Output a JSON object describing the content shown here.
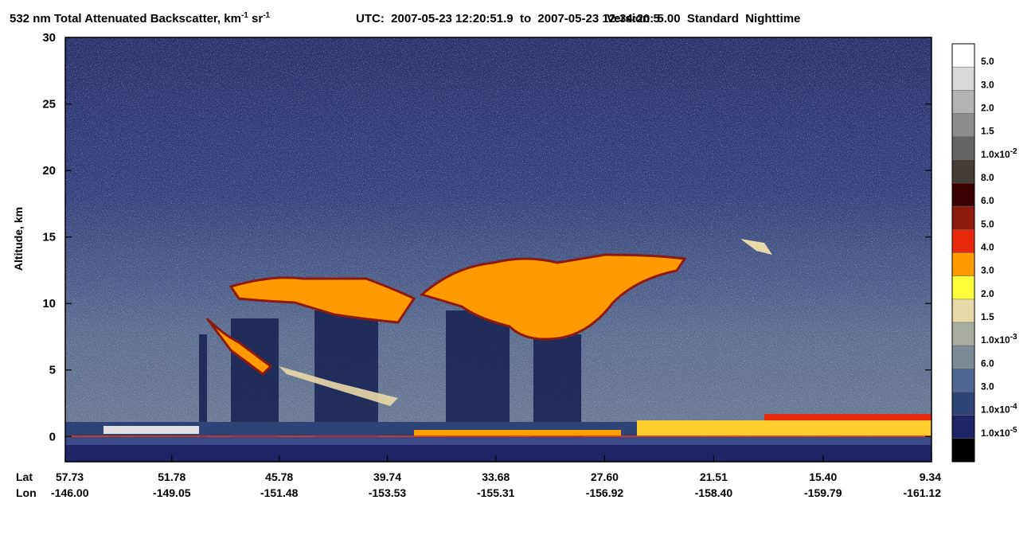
{
  "title": {
    "main": "532 nm Total Attenuated Backscatter, km",
    "sup1": "-1",
    "mid": " sr",
    "sup2": "-1",
    "utc": "UTC:  2007-05-23 12:20:51.9  to  2007-05-23 12:34:20.5",
    "version": "Version: 5.00  Standard  Nighttime"
  },
  "chart_data": {
    "type": "heatmap",
    "ylabel": "Altitude, km",
    "ylim": [
      -1.9,
      30
    ],
    "yticks": [
      0,
      5,
      10,
      15,
      20,
      25,
      30
    ],
    "x_row_labels": [
      "Lat",
      "Lon"
    ],
    "xlim": [
      57.73,
      9.34
    ],
    "xticks": [
      {
        "value": 57.73,
        "label": "57.73",
        "lon": "-146.00"
      },
      {
        "value": 51.78,
        "label": "51.78",
        "lon": "-149.05"
      },
      {
        "value": 45.78,
        "label": "45.78",
        "lon": "-151.48"
      },
      {
        "value": 39.74,
        "label": "39.74",
        "lon": "-153.53"
      },
      {
        "value": 33.68,
        "label": "33.68",
        "lon": "-155.31"
      },
      {
        "value": 27.6,
        "label": "27.60",
        "lon": "-156.92"
      },
      {
        "value": 21.51,
        "label": "21.51",
        "lon": "-158.40"
      },
      {
        "value": 15.4,
        "label": "15.40",
        "lon": "-159.79"
      },
      {
        "value": 9.34,
        "label": "9.34",
        "lon": "-161.12"
      }
    ]
  },
  "colorbar": {
    "colors": [
      "#ffffff",
      "#d9d9d9",
      "#b3b3b3",
      "#8c8c8c",
      "#646464",
      "#463c37",
      "#3a0000",
      "#8c1a10",
      "#e8280a",
      "#ff9a00",
      "#ffff3c",
      "#ead9a8",
      "#a9aca3",
      "#7a8a96",
      "#4f6690",
      "#2e4478",
      "#1e2466",
      "#000000"
    ],
    "labels": [
      {
        "text": "5.0"
      },
      {
        "text": "3.0"
      },
      {
        "text": "2.0"
      },
      {
        "text": "1.5"
      },
      {
        "base": "1.0x10",
        "exp": "-2"
      },
      {
        "text": "8.0"
      },
      {
        "text": "6.0"
      },
      {
        "text": "5.0"
      },
      {
        "text": "4.0"
      },
      {
        "text": "3.0"
      },
      {
        "text": "2.0"
      },
      {
        "text": "1.5"
      },
      {
        "base": "1.0x10",
        "exp": "-3"
      },
      {
        "text": "6.0"
      },
      {
        "text": "3.0"
      },
      {
        "base": "1.0x10",
        "exp": "-4"
      },
      {
        "base": "1.0x10",
        "exp": "-5"
      }
    ]
  }
}
